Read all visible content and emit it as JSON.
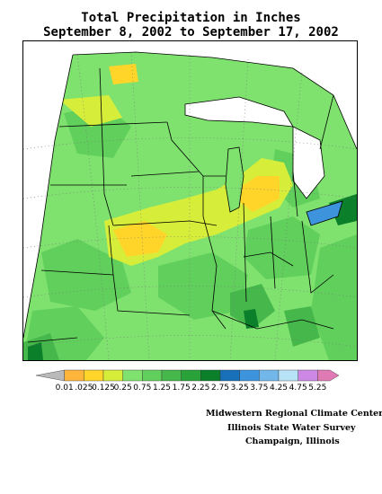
{
  "title": {
    "line1": "Total Precipitation in Inches",
    "line2": "September 8, 2002 to September 17, 2002"
  },
  "legend": {
    "labels": [
      "0.01",
      ".025",
      "0.125",
      "0.25",
      "0.75",
      "1.25",
      "1.75",
      "2.25",
      "2.75",
      "3.25",
      "3.75",
      "4.25",
      "4.75",
      "5.25"
    ],
    "colors": [
      "#b9b9b9",
      "#ffb43c",
      "#ffd52a",
      "#d6ee3a",
      "#7fe26f",
      "#61cf5c",
      "#45b74b",
      "#2aa23a",
      "#0c7f2a",
      "#1870b8",
      "#3e94dc",
      "#72b7ea",
      "#b8e2f6",
      "#cc88e4",
      "#e07ab4"
    ]
  },
  "credits": {
    "line1": "Midwestern Regional Climate Center",
    "line2": "Illinois State Water Survey",
    "line3": "Champaign, Illinois"
  }
}
